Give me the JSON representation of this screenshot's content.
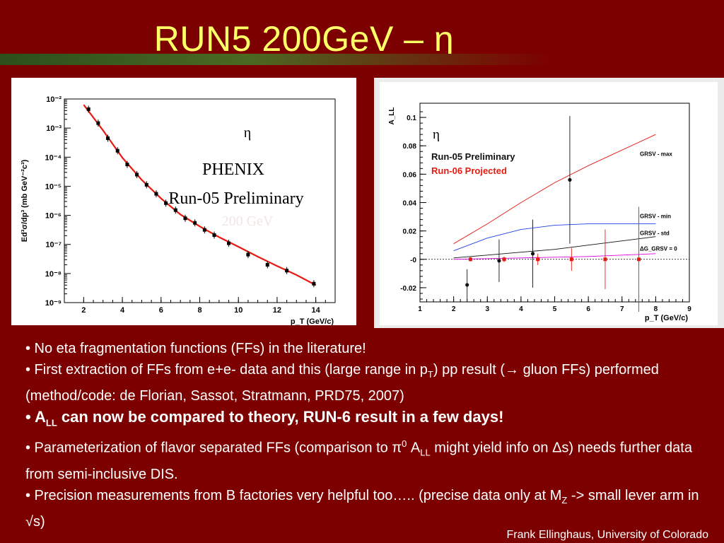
{
  "slide": {
    "title": "RUN5  200GeV – η",
    "footer": "Frank Ellinghaus, University of Colorado"
  },
  "colors": {
    "background": "#7d0000",
    "title": "#ffff66",
    "red_curve": "#e8190f",
    "blue_curve": "#1f3fe8",
    "magenta_curve": "#e000e0"
  },
  "bullets": [
    {
      "id": "b1",
      "text": "• No eta fragmentation functions (FFs) in the literature!"
    },
    {
      "id": "b2",
      "parts": [
        "• First extraction of FFs from e+e- data and this (large range in p",
        "T",
        ") pp result (→ gluon FFs) performed (method/code: de Florian, Sassot, Stratmann, PRD75, 2007)"
      ]
    },
    {
      "id": "b3",
      "parts": [
        "• ",
        "A",
        "LL",
        " can now be compared to theory, RUN-6 result in a few days!"
      ]
    },
    {
      "id": "b4",
      "parts": [
        "• Parameterization of flavor separated FFs (comparison to π",
        "0",
        " A",
        "LL",
        " might yield info on Δs) needs further data from semi-inclusive DIS."
      ]
    },
    {
      "id": "b5",
      "parts": [
        "• Precision measurements from B factories very helpful too….. (precise data only at M",
        "Z",
        " -> small lever arm in √s)"
      ]
    }
  ],
  "chart_data": [
    {
      "type": "scatter",
      "id": "cross-section",
      "ylabel": "Ed³σ/dp³ (mb GeV⁻²c³)",
      "xlabel": "p_T (GeV/c)",
      "xlim": [
        1.0,
        15.0
      ],
      "ylog": true,
      "ylim_exp": [
        -9,
        -2
      ],
      "xticks": [
        2,
        4,
        6,
        8,
        10,
        12,
        14
      ],
      "yticks": [
        "10⁻²",
        "10⁻³",
        "10⁻⁴",
        "10⁻⁵",
        "10⁻⁶",
        "10⁻⁷",
        "10⁻⁸",
        "10⁻⁹"
      ],
      "annotations": [
        "η",
        "PHENIX",
        "Run-05 Preliminary",
        "200 GeV"
      ],
      "points": [
        {
          "x": 2.25,
          "logy": -2.35
        },
        {
          "x": 2.75,
          "logy": -2.83
        },
        {
          "x": 3.25,
          "logy": -3.35
        },
        {
          "x": 3.75,
          "logy": -3.78
        },
        {
          "x": 4.25,
          "logy": -4.25
        },
        {
          "x": 4.75,
          "logy": -4.6
        },
        {
          "x": 5.25,
          "logy": -4.95
        },
        {
          "x": 5.75,
          "logy": -5.26
        },
        {
          "x": 6.25,
          "logy": -5.58
        },
        {
          "x": 6.75,
          "logy": -5.82
        },
        {
          "x": 7.25,
          "logy": -6.1
        },
        {
          "x": 7.75,
          "logy": -6.26
        },
        {
          "x": 8.25,
          "logy": -6.5
        },
        {
          "x": 8.75,
          "logy": -6.68
        },
        {
          "x": 9.5,
          "logy": -6.96
        },
        {
          "x": 10.5,
          "logy": -7.35
        },
        {
          "x": 11.5,
          "logy": -7.7
        },
        {
          "x": 12.5,
          "logy": -7.9
        },
        {
          "x": 13.9,
          "logy": -8.35
        }
      ],
      "fit": {
        "color": "#e8190f",
        "x": [
          2.0,
          3.0,
          4.0,
          5.0,
          6.0,
          7.0,
          8.0,
          9.0,
          10.0,
          11.0,
          12.0,
          13.0,
          14.0
        ],
        "logy": [
          -2.2,
          -3.08,
          -4.02,
          -4.78,
          -5.42,
          -5.97,
          -6.38,
          -6.75,
          -7.08,
          -7.42,
          -7.74,
          -8.05,
          -8.4
        ]
      }
    },
    {
      "type": "scatter",
      "id": "asymmetry",
      "ylabel": "A_LL",
      "xlabel": "p_T (GeV/c)",
      "xlim": [
        1,
        9
      ],
      "ylim": [
        -0.03,
        0.11
      ],
      "xticks": [
        1,
        2,
        3,
        4,
        5,
        6,
        7,
        8,
        9
      ],
      "yticks": [
        0.1,
        0.08,
        0.06,
        0.04,
        0.02,
        0,
        -0.02
      ],
      "ytick_labels": [
        "0.1",
        "0.08",
        "0.06",
        "0.04",
        "0.02",
        "-0",
        "-0.02"
      ],
      "annotations": [
        "η"
      ],
      "legend": [
        {
          "label": "Run-05 Preliminary",
          "color": "#111111"
        },
        {
          "label": "Run-06 Projected",
          "color": "#e8190f"
        }
      ],
      "series": [
        {
          "name": "Run-05 Preliminary",
          "color": "#111111",
          "x": [
            2.4,
            3.35,
            4.35,
            5.45
          ],
          "y": [
            -0.018,
            -0.001,
            0.004,
            0.056
          ],
          "err": [
            0.011,
            0.015,
            0.024,
            0.045
          ]
        },
        {
          "name": "Run-06 Projected",
          "color": "#e8190f",
          "x": [
            2.5,
            3.5,
            4.5,
            5.5,
            6.5,
            7.5
          ],
          "y": [
            0.0,
            0.0,
            0.0,
            0.0,
            0.0,
            0.0
          ],
          "err": [
            0.0015,
            0.002,
            0.004,
            0.008,
            0.021,
            0.037
          ]
        }
      ],
      "curves": [
        {
          "name": "GRSV - max",
          "color": "#e8190f",
          "x": [
            2,
            3,
            4,
            5,
            6,
            7,
            8
          ],
          "y": [
            0.011,
            0.025,
            0.04,
            0.054,
            0.066,
            0.077,
            0.088
          ]
        },
        {
          "name": "GRSV - min",
          "color": "#1f3fe8",
          "x": [
            2,
            3,
            4,
            5,
            6,
            7,
            8
          ],
          "y": [
            0.006,
            0.015,
            0.021,
            0.024,
            0.025,
            0.025,
            0.025
          ]
        },
        {
          "name": "GRSV - std",
          "color": "#111111",
          "x": [
            2,
            3,
            4,
            5,
            6,
            7,
            8
          ],
          "y": [
            0.001,
            0.003,
            0.005,
            0.007,
            0.01,
            0.013,
            0.016
          ]
        },
        {
          "name": "ΔG_GRSV = 0",
          "color": "#e000e0",
          "x": [
            2,
            3,
            4,
            5,
            6,
            7,
            8
          ],
          "y": [
            0.0,
            0.0005,
            0.001,
            0.0015,
            0.002,
            0.003,
            0.004
          ]
        }
      ],
      "zero_line": true
    }
  ]
}
